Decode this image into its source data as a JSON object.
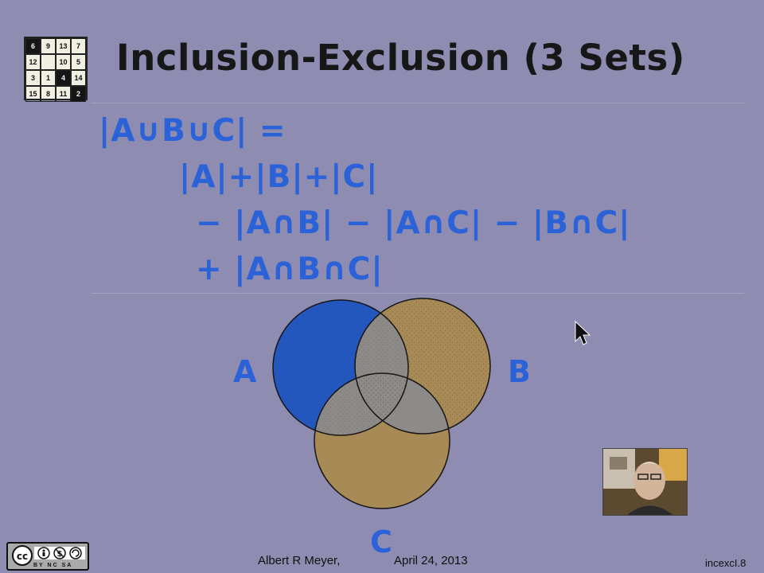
{
  "slide": {
    "title": "Inclusion-Exclusion (3 Sets)",
    "formula": {
      "line1": "|A∪B∪C| =",
      "line2": "|A|+|B|+|C|",
      "line3": "− |A∩B| − |A∩C| − |B∩C|",
      "line4": "+ |A∩B∩C|"
    },
    "venn": {
      "label_a": "A",
      "label_b": "B",
      "label_c": "C",
      "colors": {
        "a_fill": "#2457be",
        "b_fill": "#a88a57",
        "c_fill": "#a88a57",
        "overlap_fill": "#8d8a8a"
      }
    }
  },
  "logo": {
    "puzzle_numbers": [
      "6",
      "9",
      "13",
      "7",
      "12",
      "",
      "10",
      "5",
      "3",
      "1",
      "4",
      "14",
      "15",
      "8",
      "11",
      "2"
    ]
  },
  "footer": {
    "author": "Albert R Meyer,",
    "date": "April 24, 2013",
    "slide_id": "incexcI.8",
    "license_badge": "cc-by-nc-sa-badge",
    "license_sub": "BY NC SA"
  }
}
